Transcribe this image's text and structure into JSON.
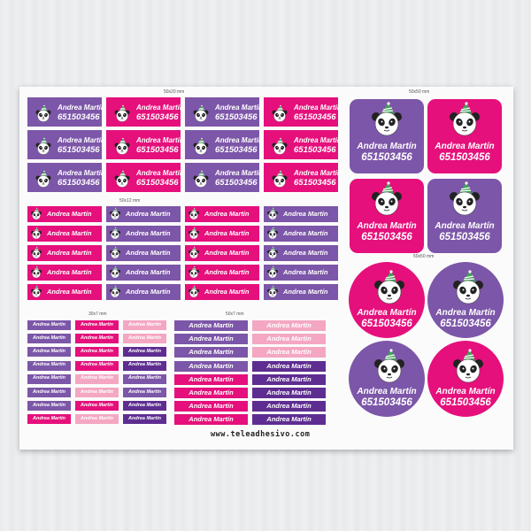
{
  "sheet": {
    "name": "Andrea Martín",
    "phone": "651503456",
    "website": "www.teleadhesivo.com",
    "colors": {
      "purple": "#7c56a8",
      "pink": "#e5107b",
      "light_pink": "#f4a7c2",
      "dark_purple": "#5e2d91"
    },
    "icon": "panda-with-party-hat-icon"
  },
  "sizes": {
    "s50x20": "50x20 mm",
    "s50x50a": "50x50 mm",
    "s50x12": "50x12 mm",
    "s50x50b": "50x50 mm",
    "s30x7": "30x7 mm",
    "s50x7": "50x7 mm"
  }
}
